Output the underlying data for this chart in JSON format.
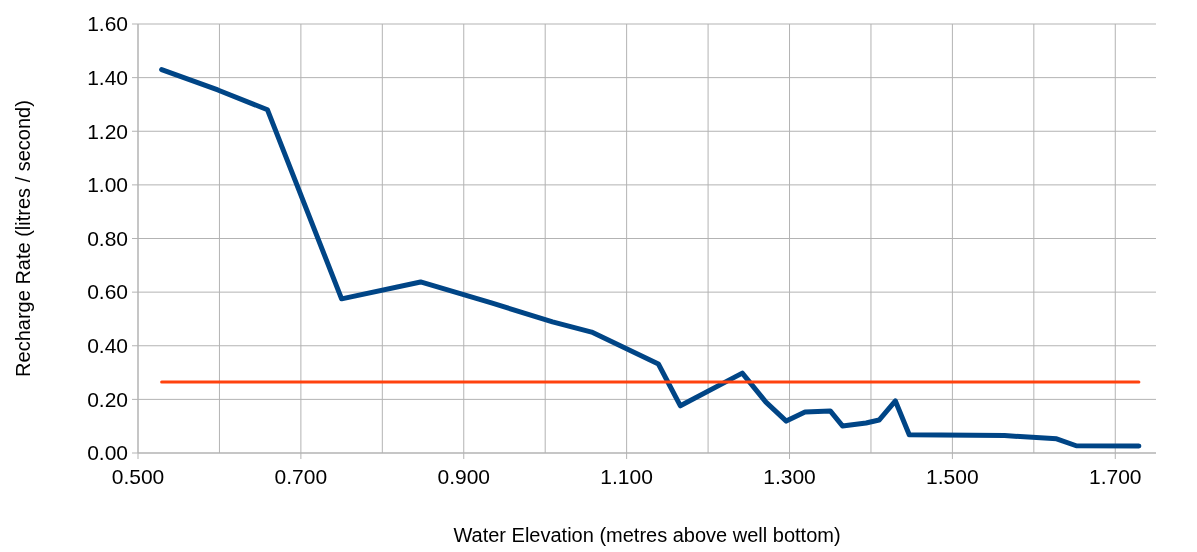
{
  "chart_data": {
    "type": "line",
    "xlabel": "Water Elevation  (metres above well bottom)",
    "ylabel": "Recharge Rate  (litres / second)",
    "xlim": [
      0.5,
      1.75
    ],
    "xticks": [
      {
        "value": 0.5,
        "label": "0.500"
      },
      {
        "value": 0.7,
        "label": "0.700"
      },
      {
        "value": 0.9,
        "label": "0.900"
      },
      {
        "value": 1.1,
        "label": "1.100"
      },
      {
        "value": 1.3,
        "label": "1.300"
      },
      {
        "value": 1.5,
        "label": "1.500"
      },
      {
        "value": 1.7,
        "label": "1.700"
      }
    ],
    "ylim": [
      0,
      1.6
    ],
    "yticks": [
      {
        "value": 0,
        "label": "0.00"
      },
      {
        "value": 0.2,
        "label": "0.20"
      },
      {
        "value": 0.4,
        "label": "0.40"
      },
      {
        "value": 0.6,
        "label": "0.60"
      },
      {
        "value": 0.8,
        "label": "0.80"
      },
      {
        "value": 1,
        "label": "1.00"
      },
      {
        "value": 1.2,
        "label": "1.20"
      },
      {
        "value": 1.4,
        "label": "1.40"
      },
      {
        "value": 1.6,
        "label": "1.60"
      }
    ],
    "grid": true,
    "marker": "none",
    "line_style": "solid",
    "series": [
      {
        "color": "#004586",
        "x": [
          0.529,
          0.598,
          0.659,
          0.75,
          0.847,
          0.934,
          1.009,
          1.057,
          1.139,
          1.166,
          1.242,
          1.271,
          1.296,
          1.319,
          1.35,
          1.365,
          1.394,
          1.41,
          1.43,
          1.447,
          1.564,
          1.628,
          1.652,
          1.729
        ],
        "values": [
          1.43,
          1.354,
          1.28,
          0.575,
          0.638,
          0.56,
          0.489,
          0.451,
          0.332,
          0.176,
          0.298,
          0.19,
          0.119,
          0.153,
          0.157,
          0.101,
          0.112,
          0.123,
          0.194,
          0.068,
          0.065,
          0.053,
          0.027,
          0.026
        ]
      },
      {
        "color": "#ff420e",
        "x": [
          0.529,
          1.729
        ],
        "values": [
          0.265,
          0.265
        ]
      }
    ]
  }
}
